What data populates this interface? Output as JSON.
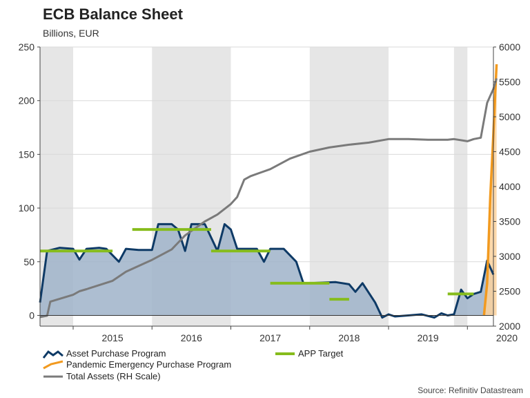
{
  "title": "ECB Balance Sheet",
  "subtitle": "Billions, EUR",
  "source": "Source: Refinitiv Datastream",
  "legend": {
    "app": "Asset Purchase Program",
    "pepp": "Pandemic Emergency Purchase Program",
    "total": "Total Assets (RH Scale)",
    "target": "APP Target"
  },
  "colors": {
    "app_line": "#0e3a66",
    "app_fill": "#9fb3c9",
    "pepp_line": "#f29a1f",
    "pepp_fill": "#fcd29c",
    "total": "#7a7a7a",
    "target": "#86bc1c",
    "band": "#e6e6e6"
  },
  "chart_data": {
    "type": "line",
    "title": "ECB Balance Sheet",
    "subtitle": "Billions, EUR",
    "x_range": [
      2014.58,
      2020.33
    ],
    "year_ticks": [
      "2015",
      "2016",
      "2017",
      "2018",
      "2019",
      "2020"
    ],
    "left_axis": {
      "label": "Billions, EUR",
      "range": [
        -10,
        250
      ],
      "ticks": [
        0,
        50,
        100,
        150,
        200,
        250
      ]
    },
    "right_axis": {
      "label": "Total Assets (RH Scale)",
      "range": [
        2000,
        6000
      ],
      "ticks": [
        2000,
        2500,
        3000,
        3500,
        4000,
        4500,
        5000,
        5500,
        6000
      ]
    },
    "shaded_years": [
      [
        2014.58,
        2015.0
      ],
      [
        2016.0,
        2017.0
      ],
      [
        2018.0,
        2019.0
      ],
      [
        2019.83,
        2020.0
      ]
    ],
    "series": [
      {
        "name": "Asset Purchase Program",
        "axis": "left",
        "area": true,
        "points": [
          [
            2014.58,
            12
          ],
          [
            2014.67,
            60
          ],
          [
            2014.83,
            63
          ],
          [
            2015.0,
            62
          ],
          [
            2015.08,
            52
          ],
          [
            2015.17,
            62
          ],
          [
            2015.33,
            63
          ],
          [
            2015.42,
            62
          ],
          [
            2015.58,
            50
          ],
          [
            2015.67,
            62
          ],
          [
            2015.83,
            61
          ],
          [
            2016.0,
            61
          ],
          [
            2016.08,
            85
          ],
          [
            2016.25,
            85
          ],
          [
            2016.33,
            80
          ],
          [
            2016.42,
            60
          ],
          [
            2016.5,
            85
          ],
          [
            2016.67,
            85
          ],
          [
            2016.83,
            60
          ],
          [
            2016.92,
            85
          ],
          [
            2017.0,
            80
          ],
          [
            2017.08,
            62
          ],
          [
            2017.33,
            62
          ],
          [
            2017.42,
            50
          ],
          [
            2017.5,
            62
          ],
          [
            2017.67,
            62
          ],
          [
            2017.83,
            50
          ],
          [
            2017.92,
            30
          ],
          [
            2018.0,
            30
          ],
          [
            2018.33,
            31
          ],
          [
            2018.5,
            29
          ],
          [
            2018.58,
            22
          ],
          [
            2018.67,
            30
          ],
          [
            2018.83,
            12
          ],
          [
            2018.92,
            -2
          ],
          [
            2019.0,
            1
          ],
          [
            2019.08,
            -1
          ],
          [
            2019.25,
            0
          ],
          [
            2019.42,
            1
          ],
          [
            2019.58,
            -2
          ],
          [
            2019.67,
            2
          ],
          [
            2019.75,
            0
          ],
          [
            2019.83,
            1
          ],
          [
            2019.92,
            24
          ],
          [
            2020.0,
            16
          ],
          [
            2020.08,
            20
          ],
          [
            2020.17,
            22
          ],
          [
            2020.25,
            51
          ],
          [
            2020.33,
            38
          ]
        ]
      },
      {
        "name": "Pandemic Emergency Purchase Program",
        "axis": "left",
        "area": true,
        "points": [
          [
            2020.21,
            0
          ],
          [
            2020.25,
            30
          ],
          [
            2020.29,
            110
          ],
          [
            2020.33,
            170
          ],
          [
            2020.37,
            234
          ]
        ]
      },
      {
        "name": "Total Assets (RH Scale)",
        "axis": "right",
        "points": [
          [
            2014.58,
            2130
          ],
          [
            2014.67,
            2150
          ],
          [
            2014.71,
            2350
          ],
          [
            2015.0,
            2450
          ],
          [
            2015.08,
            2500
          ],
          [
            2015.17,
            2530
          ],
          [
            2015.5,
            2650
          ],
          [
            2015.67,
            2780
          ],
          [
            2016.0,
            2950
          ],
          [
            2016.25,
            3100
          ],
          [
            2016.42,
            3300
          ],
          [
            2016.67,
            3500
          ],
          [
            2016.83,
            3600
          ],
          [
            2017.0,
            3750
          ],
          [
            2017.08,
            3850
          ],
          [
            2017.17,
            4100
          ],
          [
            2017.25,
            4150
          ],
          [
            2017.5,
            4250
          ],
          [
            2017.75,
            4400
          ],
          [
            2018.0,
            4500
          ],
          [
            2018.25,
            4560
          ],
          [
            2018.5,
            4600
          ],
          [
            2018.75,
            4630
          ],
          [
            2019.0,
            4680
          ],
          [
            2019.25,
            4680
          ],
          [
            2019.5,
            4670
          ],
          [
            2019.75,
            4670
          ],
          [
            2019.83,
            4680
          ],
          [
            2020.0,
            4650
          ],
          [
            2020.08,
            4680
          ],
          [
            2020.17,
            4700
          ],
          [
            2020.21,
            4950
          ],
          [
            2020.25,
            5200
          ],
          [
            2020.29,
            5300
          ],
          [
            2020.33,
            5400
          ],
          [
            2020.37,
            5550
          ]
        ]
      },
      {
        "name": "APP Target",
        "axis": "left",
        "segments": [
          [
            [
              2014.58,
              2015.5
            ],
            60
          ],
          [
            [
              2015.75,
              2016.75
            ],
            80
          ],
          [
            [
              2016.75,
              2017.5
            ],
            60
          ],
          [
            [
              2017.5,
              2018.25
            ],
            30
          ],
          [
            [
              2018.25,
              2018.5
            ],
            15
          ],
          [
            [
              2019.75,
              2020.08
            ],
            20
          ]
        ]
      }
    ]
  }
}
